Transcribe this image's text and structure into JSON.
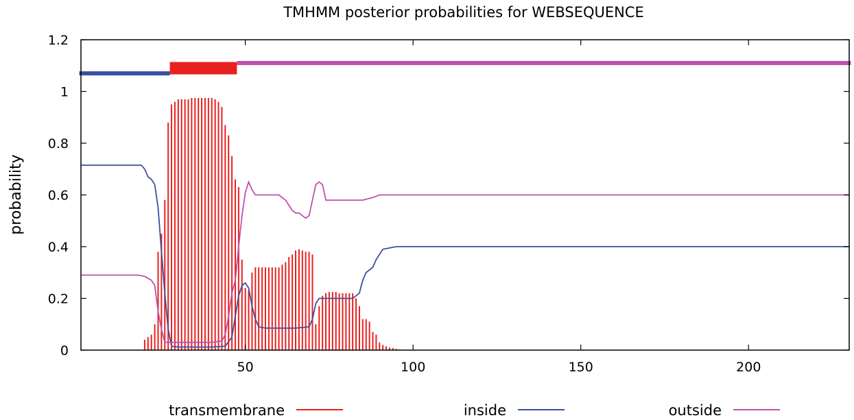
{
  "chart_data": {
    "type": "line",
    "title": "TMHMM posterior probabilities for WEBSEQUENCE",
    "xlabel": "",
    "ylabel": "probability",
    "xlim": [
      1,
      230
    ],
    "ylim": [
      0,
      1.2
    ],
    "x_ticks": [
      50,
      100,
      150,
      200
    ],
    "y_ticks": [
      0,
      0.2,
      0.4,
      0.6,
      0.8,
      1,
      1.2
    ],
    "y_tick_labels": [
      "0",
      "0.2",
      "0.4",
      "0.6",
      "0.8",
      "1",
      "1.2"
    ],
    "grid": false,
    "legend_position": "bottom",
    "colors": {
      "transmembrane": "#e8201e",
      "inside": "#3b4fa0",
      "outside": "#c050b0"
    },
    "topology": [
      {
        "region": "inside",
        "start": 1,
        "end": 27,
        "y": 1.07
      },
      {
        "region": "transmembrane",
        "start": 28,
        "end": 47,
        "y": 1.09
      },
      {
        "region": "outside",
        "start": 48,
        "end": 230,
        "y": 1.11
      }
    ],
    "series": [
      {
        "name": "transmembrane",
        "style": "impulses",
        "color": "#e8201e",
        "points": [
          [
            20,
            0.04
          ],
          [
            21,
            0.05
          ],
          [
            22,
            0.06
          ],
          [
            23,
            0.1
          ],
          [
            24,
            0.38
          ],
          [
            25,
            0.45
          ],
          [
            26,
            0.58
          ],
          [
            27,
            0.88
          ],
          [
            28,
            0.95
          ],
          [
            29,
            0.96
          ],
          [
            30,
            0.97
          ],
          [
            31,
            0.97
          ],
          [
            32,
            0.97
          ],
          [
            33,
            0.97
          ],
          [
            34,
            0.975
          ],
          [
            35,
            0.975
          ],
          [
            36,
            0.975
          ],
          [
            37,
            0.975
          ],
          [
            38,
            0.975
          ],
          [
            39,
            0.975
          ],
          [
            40,
            0.975
          ],
          [
            41,
            0.97
          ],
          [
            42,
            0.96
          ],
          [
            43,
            0.94
          ],
          [
            44,
            0.87
          ],
          [
            45,
            0.83
          ],
          [
            46,
            0.75
          ],
          [
            47,
            0.66
          ],
          [
            48,
            0.63
          ],
          [
            49,
            0.35
          ],
          [
            50,
            0.24
          ],
          [
            51,
            0.23
          ],
          [
            52,
            0.3
          ],
          [
            53,
            0.32
          ],
          [
            54,
            0.32
          ],
          [
            55,
            0.32
          ],
          [
            56,
            0.32
          ],
          [
            57,
            0.32
          ],
          [
            58,
            0.32
          ],
          [
            59,
            0.32
          ],
          [
            60,
            0.32
          ],
          [
            61,
            0.33
          ],
          [
            62,
            0.34
          ],
          [
            63,
            0.36
          ],
          [
            64,
            0.37
          ],
          [
            65,
            0.385
          ],
          [
            66,
            0.39
          ],
          [
            67,
            0.385
          ],
          [
            68,
            0.38
          ],
          [
            69,
            0.38
          ],
          [
            70,
            0.37
          ],
          [
            71,
            0.1
          ],
          [
            72,
            0.17
          ],
          [
            73,
            0.21
          ],
          [
            74,
            0.22
          ],
          [
            75,
            0.225
          ],
          [
            76,
            0.225
          ],
          [
            77,
            0.225
          ],
          [
            78,
            0.22
          ],
          [
            79,
            0.22
          ],
          [
            80,
            0.22
          ],
          [
            81,
            0.22
          ],
          [
            82,
            0.22
          ],
          [
            83,
            0.2
          ],
          [
            84,
            0.17
          ],
          [
            85,
            0.12
          ],
          [
            86,
            0.12
          ],
          [
            87,
            0.11
          ],
          [
            88,
            0.07
          ],
          [
            89,
            0.06
          ],
          [
            90,
            0.03
          ],
          [
            91,
            0.02
          ],
          [
            92,
            0.015
          ],
          [
            93,
            0.01
          ],
          [
            94,
            0.008
          ],
          [
            95,
            0.005
          ],
          [
            96,
            0.003
          ]
        ]
      },
      {
        "name": "inside",
        "style": "line",
        "color": "#3b4fa0",
        "points": [
          [
            1,
            0.715
          ],
          [
            19,
            0.715
          ],
          [
            20,
            0.7
          ],
          [
            21,
            0.67
          ],
          [
            22,
            0.66
          ],
          [
            23,
            0.64
          ],
          [
            24,
            0.55
          ],
          [
            25,
            0.38
          ],
          [
            26,
            0.22
          ],
          [
            27,
            0.08
          ],
          [
            28,
            0.015
          ],
          [
            30,
            0.012
          ],
          [
            35,
            0.012
          ],
          [
            40,
            0.012
          ],
          [
            44,
            0.015
          ],
          [
            46,
            0.05
          ],
          [
            47,
            0.13
          ],
          [
            48,
            0.21
          ],
          [
            49,
            0.25
          ],
          [
            50,
            0.26
          ],
          [
            51,
            0.24
          ],
          [
            52,
            0.17
          ],
          [
            53,
            0.12
          ],
          [
            54,
            0.09
          ],
          [
            56,
            0.085
          ],
          [
            60,
            0.085
          ],
          [
            65,
            0.085
          ],
          [
            69,
            0.09
          ],
          [
            70,
            0.12
          ],
          [
            71,
            0.18
          ],
          [
            72,
            0.2
          ],
          [
            74,
            0.2
          ],
          [
            78,
            0.2
          ],
          [
            82,
            0.2
          ],
          [
            84,
            0.22
          ],
          [
            85,
            0.27
          ],
          [
            86,
            0.3
          ],
          [
            87,
            0.31
          ],
          [
            88,
            0.32
          ],
          [
            89,
            0.35
          ],
          [
            90,
            0.37
          ],
          [
            91,
            0.39
          ],
          [
            93,
            0.395
          ],
          [
            95,
            0.4
          ],
          [
            100,
            0.4
          ],
          [
            150,
            0.4
          ],
          [
            230,
            0.4
          ]
        ]
      },
      {
        "name": "outside",
        "style": "line",
        "color": "#c050b0",
        "points": [
          [
            1,
            0.29
          ],
          [
            18,
            0.29
          ],
          [
            20,
            0.285
          ],
          [
            22,
            0.27
          ],
          [
            23,
            0.25
          ],
          [
            24,
            0.15
          ],
          [
            25,
            0.08
          ],
          [
            26,
            0.03
          ],
          [
            28,
            0.03
          ],
          [
            35,
            0.03
          ],
          [
            40,
            0.03
          ],
          [
            43,
            0.035
          ],
          [
            44,
            0.06
          ],
          [
            45,
            0.13
          ],
          [
            46,
            0.22
          ],
          [
            47,
            0.27
          ],
          [
            48,
            0.4
          ],
          [
            49,
            0.52
          ],
          [
            50,
            0.61
          ],
          [
            51,
            0.65
          ],
          [
            52,
            0.62
          ],
          [
            53,
            0.6
          ],
          [
            55,
            0.6
          ],
          [
            60,
            0.6
          ],
          [
            62,
            0.58
          ],
          [
            63,
            0.56
          ],
          [
            64,
            0.54
          ],
          [
            65,
            0.53
          ],
          [
            66,
            0.53
          ],
          [
            67,
            0.52
          ],
          [
            68,
            0.51
          ],
          [
            69,
            0.52
          ],
          [
            70,
            0.58
          ],
          [
            71,
            0.64
          ],
          [
            72,
            0.65
          ],
          [
            73,
            0.64
          ],
          [
            74,
            0.58
          ],
          [
            76,
            0.58
          ],
          [
            82,
            0.58
          ],
          [
            85,
            0.58
          ],
          [
            88,
            0.59
          ],
          [
            90,
            0.6
          ],
          [
            95,
            0.6
          ],
          [
            100,
            0.6
          ],
          [
            150,
            0.6
          ],
          [
            230,
            0.6
          ]
        ]
      }
    ]
  }
}
